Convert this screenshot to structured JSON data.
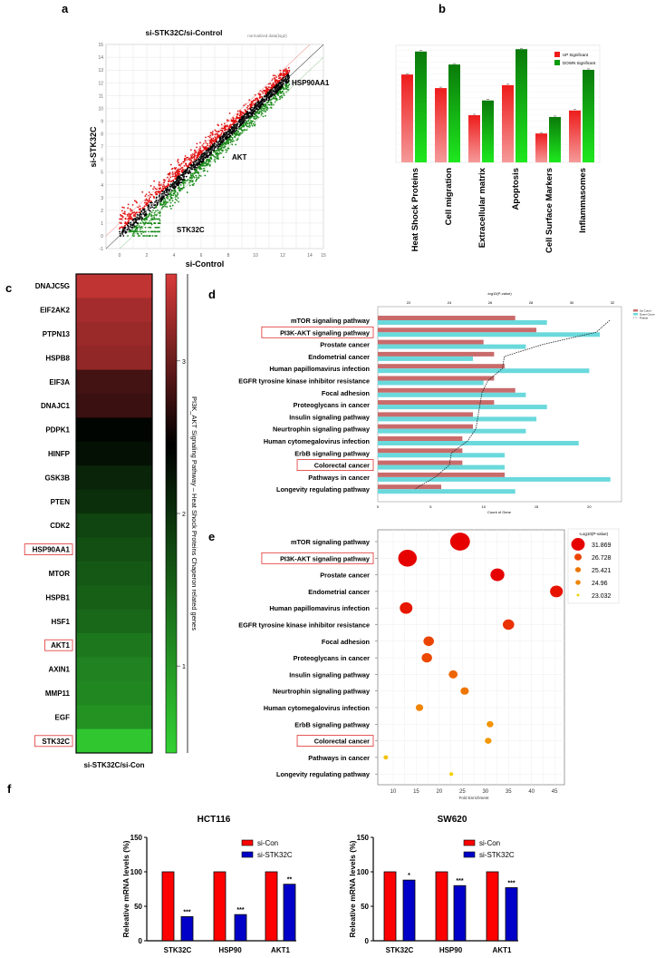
{
  "panels": {
    "a": "a",
    "b": "b",
    "c": "c",
    "d": "d",
    "e": "e",
    "f": "f"
  },
  "chart_data": [
    {
      "id": "a",
      "type": "scatter",
      "title": "si-STK32C/si-Control",
      "subtitle": "normalized data(log2)",
      "xlabel": "si-Control",
      "ylabel": "si-STK32C",
      "xlim": [
        -1,
        15
      ],
      "ylim": [
        -1,
        15
      ],
      "xticks": [
        "0",
        "2",
        "4",
        "6",
        "8",
        "10",
        "12",
        "14",
        "15"
      ],
      "yticks": [
        "-1",
        "0",
        "1",
        "2",
        "3",
        "4",
        "5",
        "6",
        "7",
        "8",
        "9",
        "10",
        "11",
        "12",
        "13",
        "14",
        "15"
      ],
      "colors": {
        "up": "#e01010",
        "down": "#1a8a1a",
        "neutral": "#000000"
      },
      "annotations": [
        "HSP90AA1",
        "AKT",
        "STK32C"
      ]
    },
    {
      "id": "b",
      "type": "bar",
      "categories": [
        "Heat Shock Proteins",
        "Cell migration",
        "Extracellular matrix",
        "Apoptosis",
        "Cell Surface Markers",
        "Inflammasomes"
      ],
      "series": [
        {
          "name": "UP Significant",
          "values": [
            14.9,
            12.6,
            8.0,
            13.1,
            4.9,
            8.8
          ],
          "color": "#ee1c1c"
        },
        {
          "name": "DOWN Significant",
          "values": [
            18.8,
            16.6,
            10.5,
            19.2,
            7.7,
            15.7
          ],
          "color": "#0a9a0a"
        }
      ],
      "ylim": [
        0,
        20
      ],
      "grid": true,
      "legend": "top-right"
    },
    {
      "id": "c",
      "type": "heatmap",
      "genes": [
        "DNAJC5G",
        "EIF2AK2",
        "PTPN13",
        "HSPB8",
        "EIF3A",
        "DNAJC1",
        "PDPK1",
        "HINFP",
        "GSK3B",
        "PTEN",
        "CDK2",
        "HSP90AA1",
        "MTOR",
        "HSPB1",
        "HSF1",
        "AKT1",
        "AXIN1",
        "MMP11",
        "EGF",
        "STK32C"
      ],
      "highlighted": [
        "HSP90AA1",
        "AKT1",
        "STK32C"
      ],
      "values": [
        3.45,
        3.3,
        3.25,
        3.2,
        2.8,
        2.75,
        2.4,
        2.3,
        2.1,
        2.0,
        1.8,
        1.7,
        1.6,
        1.55,
        1.45,
        1.3,
        1.2,
        1.15,
        1.05,
        0.55
      ],
      "xlabel": "si-STK32C/si-Con",
      "colorbar": {
        "range": [
          0.43,
          3.57
        ],
        "ticks": [
          "1",
          "2",
          "3"
        ],
        "label": "PI3K_AKT Signaling Pathway – Heat Shock Proteins Chaperon related genes"
      },
      "colors": {
        "low": "#33d233",
        "mid": "#000000",
        "high": "#d83a3a"
      }
    },
    {
      "id": "d",
      "type": "bar",
      "categories": [
        "mTOR signaling pathway",
        "PI3K-AKT signaling pathway",
        "Prostate cancer",
        "Endometrial cancer",
        "Human papillomavirus infection",
        "EGFR tyrosine kinase inhibitor resistance",
        "Focal adhesion",
        "Proteoglycans in cancer",
        "Insulin signaling pathway",
        "Neurtrophin signaling pathway",
        "Human cytomegalovirus infection",
        "ErbB signaling pathway",
        "Colorectal cancer",
        "Pathways in cancer",
        "Longevity regulating pathway"
      ],
      "highlighted": [
        "PI3K-AKT signaling pathway",
        "Colorectal cancer"
      ],
      "series": [
        {
          "name": "Up Count",
          "values": [
            13,
            15,
            10,
            11,
            12,
            11,
            13,
            11,
            9,
            9,
            8,
            8,
            8,
            12,
            6
          ],
          "color": "#c96b6b"
        },
        {
          "name": "Down Count",
          "values": [
            16,
            21,
            14,
            9,
            20,
            10,
            14,
            16,
            15,
            14,
            19,
            12,
            12,
            22,
            13
          ],
          "color": "#6ad9dc"
        },
        {
          "name": "Pvalue",
          "values": [
            31.87,
            31.2,
            28.6,
            26.7,
            26.6,
            25.9,
            25.6,
            25.5,
            25.4,
            25.3,
            24.9,
            24.1,
            24.0,
            23.3,
            22.3
          ],
          "color": "#333333"
        }
      ],
      "xlabel": "Count of Gene",
      "x2label": "-log10(P-value)",
      "xlim": [
        0,
        22
      ],
      "x2lim": [
        21.5,
        32.5
      ],
      "xticks": [
        "0",
        "5",
        "10",
        "15",
        "20"
      ],
      "x2ticks": [
        "22",
        "24",
        "26",
        "28",
        "30",
        "32"
      ],
      "legend": "top-right"
    },
    {
      "id": "e",
      "type": "scatter",
      "categories": [
        "mTOR signaling pathway",
        "PI3K-AKT signaling pathway",
        "Prostate cancer",
        "Endometrial cancer",
        "Human papillomavirus infection",
        "EGFR tyrosine kinase inhibitor resistance",
        "Focal adhesion",
        "Proteoglycans in cancer",
        "Insulin signaling pathway",
        "Neurtrophin signaling pathway",
        "Human cytomegalovirus infection",
        "ErbB signaling pathway",
        "Colorectal cancer",
        "Pathways in cancer",
        "Longevity regulating pathway"
      ],
      "highlighted": [
        "PI3K-AKT signaling pathway",
        "Colorectal cancer"
      ],
      "fold_enrichment": [
        24.5,
        13.1,
        32.6,
        45.4,
        12.8,
        35.0,
        17.7,
        17.3,
        23.0,
        25.5,
        15.7,
        31.0,
        30.6,
        8.4,
        22.6
      ],
      "neg_log10_p": [
        31.87,
        31.2,
        28.6,
        28.0,
        27.9,
        27.2,
        26.7,
        26.6,
        25.8,
        25.4,
        25.0,
        24.6,
        24.5,
        23.4,
        23.0
      ],
      "xlabel": "Fold Enrichment",
      "xlim": [
        7,
        46.5
      ],
      "xticks": [
        "10",
        "15",
        "20",
        "25",
        "30",
        "35",
        "40",
        "45"
      ],
      "legend": {
        "title": "-Log10(P-value)",
        "entries": [
          "31.869",
          "26.728",
          "25.421",
          "24.96",
          "23.032"
        ]
      },
      "colors": {
        "high": "#e60000",
        "low": "#f5d000"
      }
    },
    {
      "id": "f1",
      "type": "bar",
      "title": "HCT116",
      "categories": [
        "STK32C",
        "HSP90",
        "AKT1"
      ],
      "series": [
        {
          "name": "si-Con",
          "values": [
            100,
            100,
            100
          ],
          "color": "#ff0000"
        },
        {
          "name": "si-STK32C",
          "values": [
            35,
            38,
            82
          ],
          "color": "#0000c8"
        }
      ],
      "significance": [
        "***",
        "***",
        "**"
      ],
      "ylabel": "Releative mRNA levels (%)",
      "ylim": [
        0,
        150
      ],
      "yticks": [
        "0",
        "50",
        "100",
        "150"
      ]
    },
    {
      "id": "f2",
      "type": "bar",
      "title": "SW620",
      "categories": [
        "STK32C",
        "HSP90",
        "AKT1"
      ],
      "series": [
        {
          "name": "si-Con",
          "values": [
            100,
            100,
            100
          ],
          "color": "#ff0000"
        },
        {
          "name": "si-STK32C",
          "values": [
            88,
            80,
            77
          ],
          "color": "#0000c8"
        }
      ],
      "significance": [
        "*",
        "***",
        "***"
      ],
      "ylabel": "Releative mRNA levels (%)",
      "ylim": [
        0,
        150
      ],
      "yticks": [
        "0",
        "50",
        "100",
        "150"
      ]
    }
  ]
}
